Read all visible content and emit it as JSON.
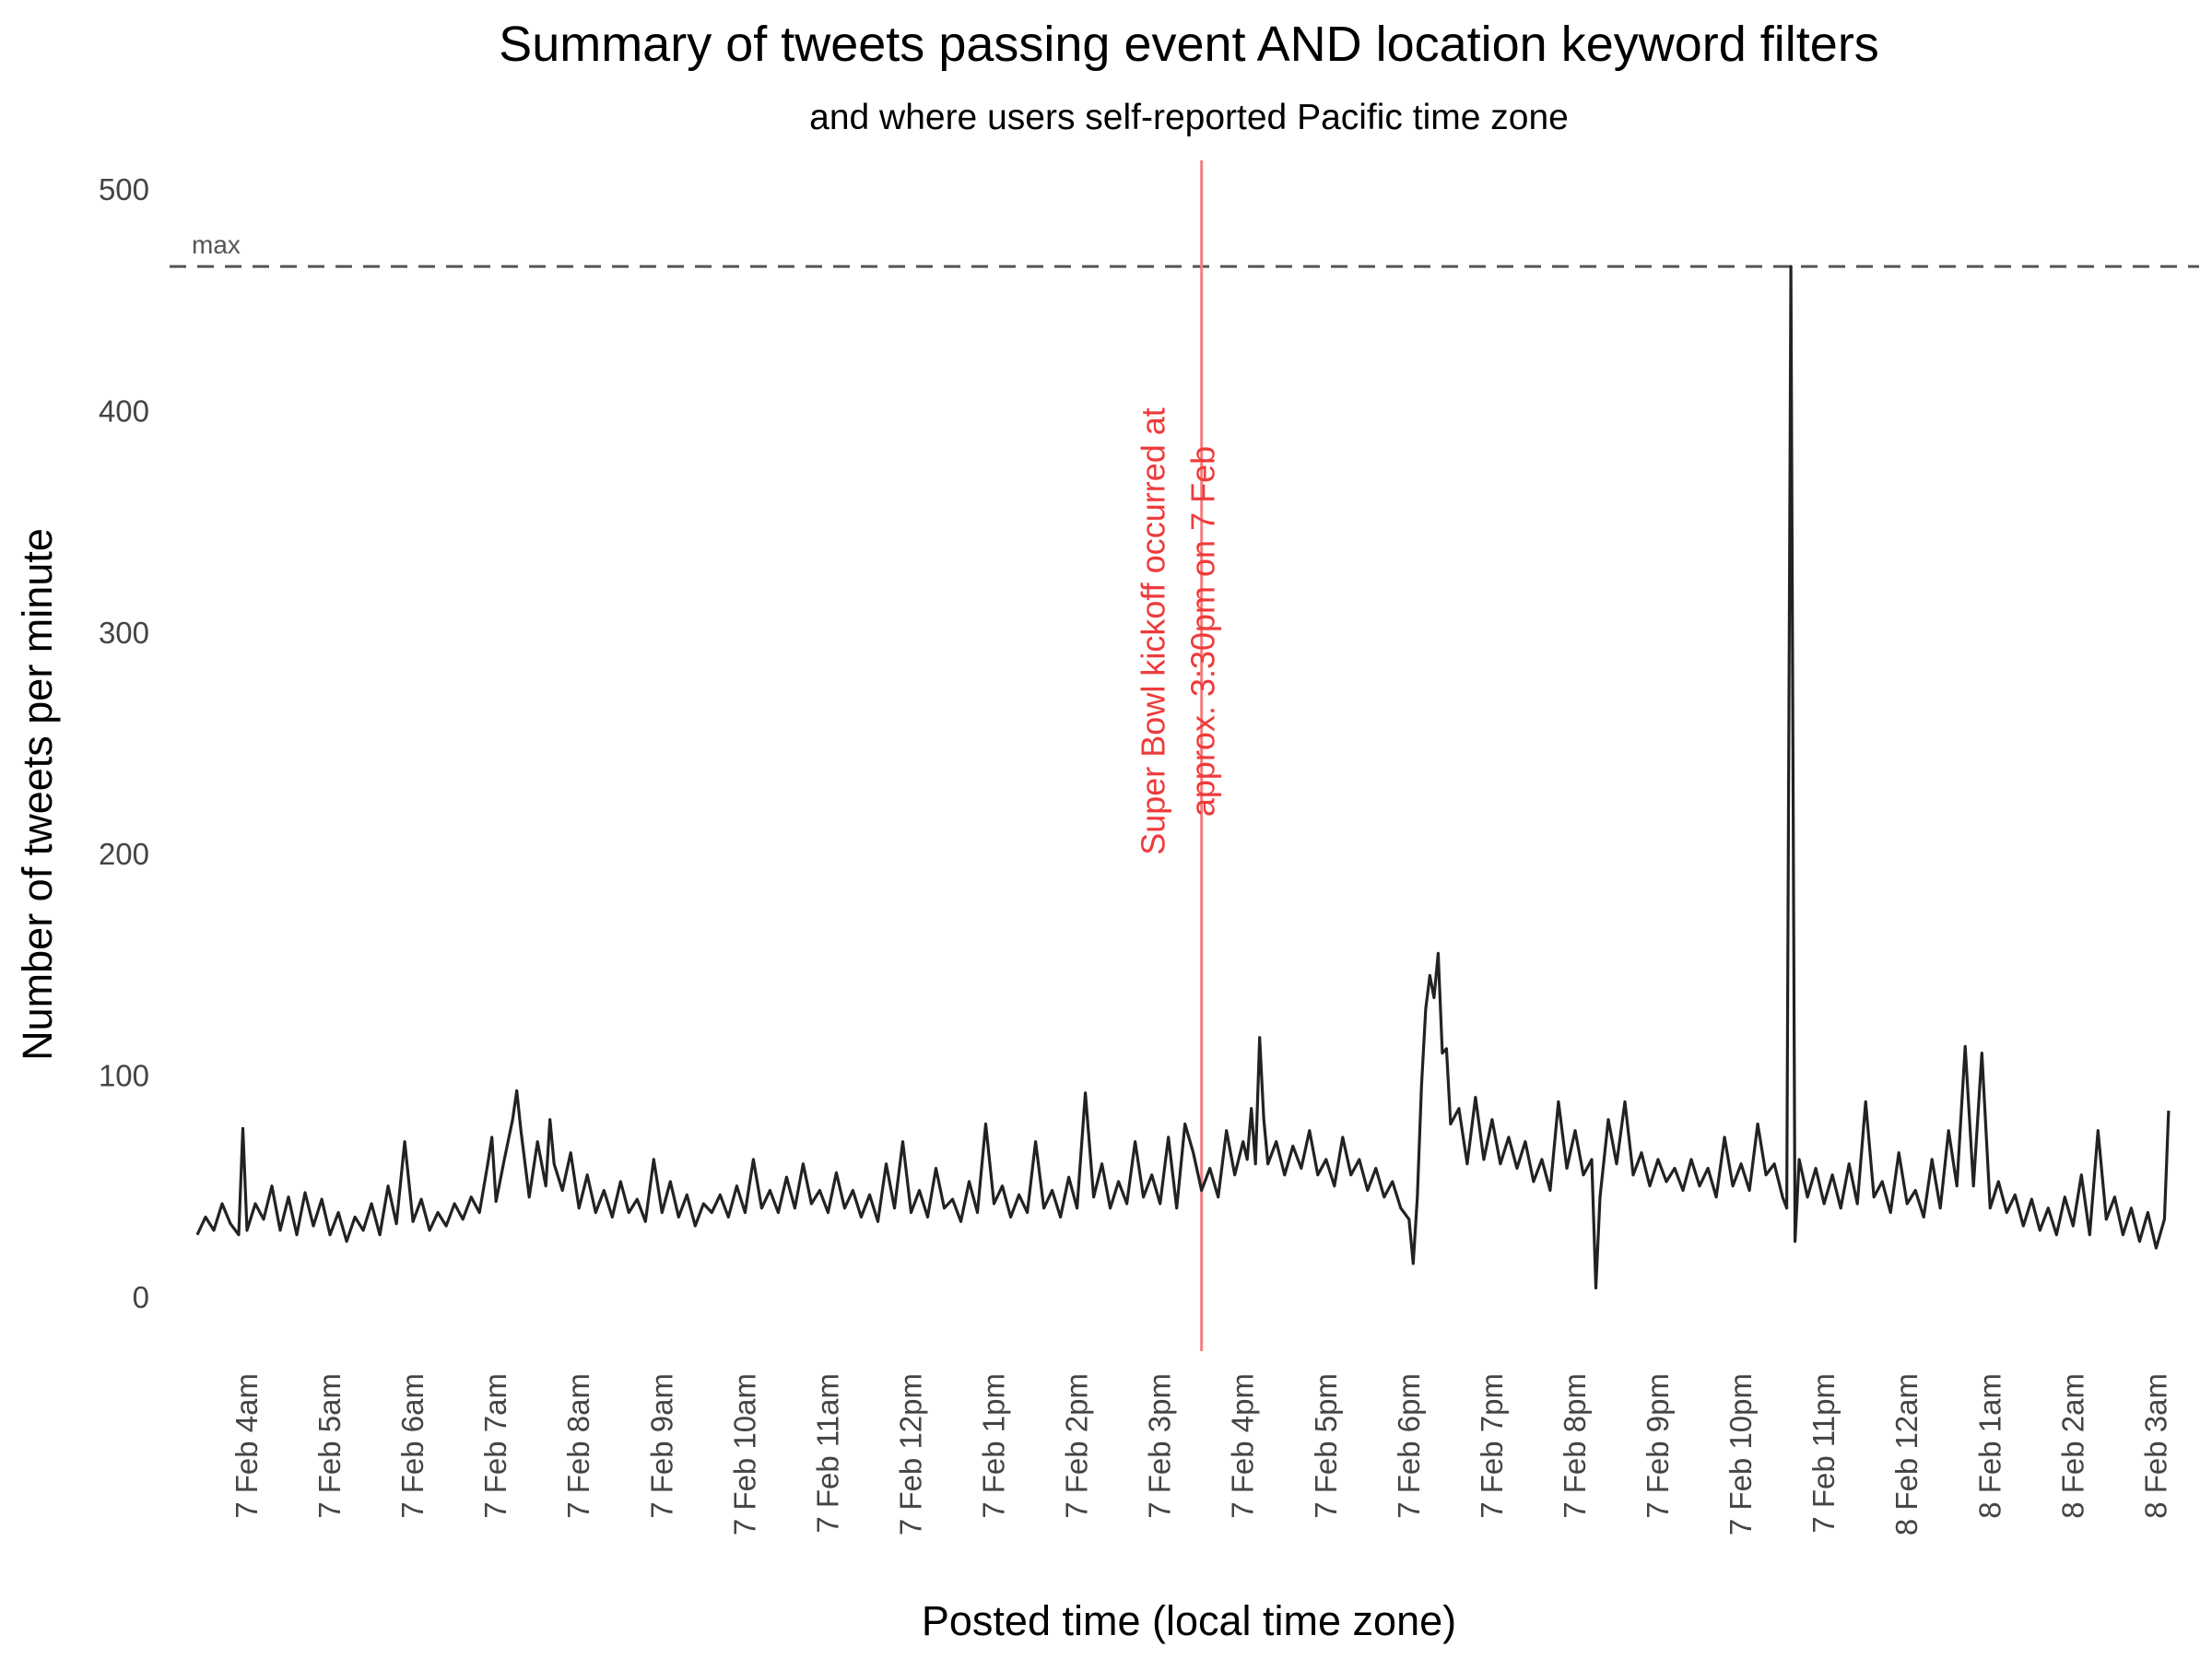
{
  "chart_data": {
    "type": "line",
    "title": "Summary of tweets passing event AND location keyword filters",
    "subtitle": "and where users self-reported Pacific time zone",
    "xlabel": "Posted time (local time zone)",
    "ylabel": "Number of tweets per minute",
    "ylim": [
      -25,
      512
    ],
    "yticks": [
      0,
      100,
      200,
      300,
      400,
      500
    ],
    "xticks": [
      "7 Feb  4am",
      "7 Feb  5am",
      "7 Feb  6am",
      "7 Feb  7am",
      "7 Feb  8am",
      "7 Feb  9am",
      "7 Feb 10am",
      "7 Feb 11am",
      "7 Feb 12pm",
      "7 Feb  1pm",
      "7 Feb  2pm",
      "7 Feb  3pm",
      "7 Feb  4pm",
      "7 Feb  5pm",
      "7 Feb  6pm",
      "7 Feb  7pm",
      "7 Feb  8pm",
      "7 Feb  9pm",
      "7 Feb 10pm",
      "7 Feb 11pm",
      "8 Feb 12am",
      "8 Feb  1am",
      "8 Feb  2am",
      "8 Feb  3am"
    ],
    "x_unit": "hours after 7 Feb 4am (local)",
    "x_range_hours": [
      -0.6,
      23.15
    ],
    "grid": false,
    "max_line": {
      "label": "max",
      "value": 465,
      "style": "dashed",
      "color": "#555555"
    },
    "event_line": {
      "x_hours": 11.5,
      "label_line1": "Super Bowl kickoff occurred at",
      "label_line2": "approx. 3:30pm on 7 Feb",
      "color": "#f08080",
      "text_color": "#ee3b3b"
    },
    "series": [
      {
        "color": "#222222",
        "points": [
          [
            -0.6,
            28
          ],
          [
            -0.5,
            36
          ],
          [
            -0.4,
            30
          ],
          [
            -0.3,
            42
          ],
          [
            -0.2,
            33
          ],
          [
            -0.1,
            28
          ],
          [
            -0.05,
            76
          ],
          [
            0.0,
            30
          ],
          [
            0.1,
            42
          ],
          [
            0.2,
            35
          ],
          [
            0.3,
            50
          ],
          [
            0.4,
            30
          ],
          [
            0.5,
            45
          ],
          [
            0.6,
            28
          ],
          [
            0.7,
            47
          ],
          [
            0.8,
            32
          ],
          [
            0.9,
            44
          ],
          [
            1.0,
            28
          ],
          [
            1.1,
            38
          ],
          [
            1.2,
            25
          ],
          [
            1.3,
            36
          ],
          [
            1.4,
            30
          ],
          [
            1.5,
            42
          ],
          [
            1.6,
            28
          ],
          [
            1.7,
            50
          ],
          [
            1.8,
            33
          ],
          [
            1.9,
            70
          ],
          [
            2.0,
            34
          ],
          [
            2.1,
            44
          ],
          [
            2.2,
            30
          ],
          [
            2.3,
            38
          ],
          [
            2.4,
            32
          ],
          [
            2.5,
            42
          ],
          [
            2.6,
            35
          ],
          [
            2.7,
            45
          ],
          [
            2.8,
            38
          ],
          [
            2.9,
            60
          ],
          [
            2.95,
            72
          ],
          [
            3.0,
            43
          ],
          [
            3.1,
            62
          ],
          [
            3.2,
            80
          ],
          [
            3.25,
            93
          ],
          [
            3.3,
            75
          ],
          [
            3.4,
            45
          ],
          [
            3.5,
            70
          ],
          [
            3.6,
            50
          ],
          [
            3.65,
            80
          ],
          [
            3.7,
            60
          ],
          [
            3.8,
            48
          ],
          [
            3.9,
            65
          ],
          [
            4.0,
            40
          ],
          [
            4.1,
            55
          ],
          [
            4.2,
            38
          ],
          [
            4.3,
            48
          ],
          [
            4.4,
            36
          ],
          [
            4.5,
            52
          ],
          [
            4.6,
            38
          ],
          [
            4.7,
            44
          ],
          [
            4.8,
            34
          ],
          [
            4.9,
            62
          ],
          [
            5.0,
            38
          ],
          [
            5.1,
            52
          ],
          [
            5.2,
            36
          ],
          [
            5.3,
            46
          ],
          [
            5.4,
            32
          ],
          [
            5.5,
            42
          ],
          [
            5.6,
            38
          ],
          [
            5.7,
            46
          ],
          [
            5.8,
            36
          ],
          [
            5.9,
            50
          ],
          [
            6.0,
            38
          ],
          [
            6.1,
            62
          ],
          [
            6.2,
            40
          ],
          [
            6.3,
            48
          ],
          [
            6.4,
            38
          ],
          [
            6.5,
            54
          ],
          [
            6.6,
            40
          ],
          [
            6.7,
            60
          ],
          [
            6.8,
            42
          ],
          [
            6.9,
            48
          ],
          [
            7.0,
            38
          ],
          [
            7.1,
            56
          ],
          [
            7.2,
            40
          ],
          [
            7.3,
            48
          ],
          [
            7.4,
            36
          ],
          [
            7.5,
            46
          ],
          [
            7.6,
            34
          ],
          [
            7.7,
            60
          ],
          [
            7.8,
            40
          ],
          [
            7.9,
            70
          ],
          [
            8.0,
            38
          ],
          [
            8.1,
            48
          ],
          [
            8.2,
            36
          ],
          [
            8.3,
            58
          ],
          [
            8.4,
            40
          ],
          [
            8.5,
            44
          ],
          [
            8.6,
            34
          ],
          [
            8.7,
            52
          ],
          [
            8.8,
            38
          ],
          [
            8.9,
            78
          ],
          [
            9.0,
            42
          ],
          [
            9.1,
            50
          ],
          [
            9.2,
            36
          ],
          [
            9.3,
            46
          ],
          [
            9.4,
            38
          ],
          [
            9.5,
            70
          ],
          [
            9.6,
            40
          ],
          [
            9.7,
            48
          ],
          [
            9.8,
            36
          ],
          [
            9.9,
            54
          ],
          [
            10.0,
            40
          ],
          [
            10.1,
            92
          ],
          [
            10.2,
            45
          ],
          [
            10.3,
            60
          ],
          [
            10.4,
            40
          ],
          [
            10.5,
            52
          ],
          [
            10.6,
            42
          ],
          [
            10.7,
            70
          ],
          [
            10.8,
            45
          ],
          [
            10.9,
            55
          ],
          [
            11.0,
            42
          ],
          [
            11.1,
            72
          ],
          [
            11.2,
            40
          ],
          [
            11.3,
            78
          ],
          [
            11.4,
            65
          ],
          [
            11.5,
            48
          ],
          [
            11.6,
            58
          ],
          [
            11.7,
            45
          ],
          [
            11.8,
            75
          ],
          [
            11.9,
            55
          ],
          [
            12.0,
            70
          ],
          [
            12.05,
            62
          ],
          [
            12.1,
            85
          ],
          [
            12.15,
            60
          ],
          [
            12.2,
            117
          ],
          [
            12.25,
            80
          ],
          [
            12.3,
            60
          ],
          [
            12.4,
            70
          ],
          [
            12.5,
            55
          ],
          [
            12.6,
            68
          ],
          [
            12.7,
            58
          ],
          [
            12.8,
            75
          ],
          [
            12.9,
            55
          ],
          [
            13.0,
            62
          ],
          [
            13.1,
            50
          ],
          [
            13.2,
            72
          ],
          [
            13.3,
            55
          ],
          [
            13.4,
            62
          ],
          [
            13.5,
            48
          ],
          [
            13.6,
            58
          ],
          [
            13.7,
            45
          ],
          [
            13.8,
            52
          ],
          [
            13.9,
            40
          ],
          [
            14.0,
            35
          ],
          [
            14.05,
            15
          ],
          [
            14.1,
            45
          ],
          [
            14.15,
            95
          ],
          [
            14.2,
            130
          ],
          [
            14.25,
            145
          ],
          [
            14.3,
            135
          ],
          [
            14.35,
            155
          ],
          [
            14.4,
            110
          ],
          [
            14.45,
            112
          ],
          [
            14.5,
            78
          ],
          [
            14.6,
            85
          ],
          [
            14.7,
            60
          ],
          [
            14.8,
            90
          ],
          [
            14.9,
            62
          ],
          [
            15.0,
            80
          ],
          [
            15.1,
            60
          ],
          [
            15.2,
            72
          ],
          [
            15.3,
            58
          ],
          [
            15.4,
            70
          ],
          [
            15.5,
            52
          ],
          [
            15.6,
            62
          ],
          [
            15.7,
            48
          ],
          [
            15.8,
            88
          ],
          [
            15.9,
            58
          ],
          [
            16.0,
            75
          ],
          [
            16.1,
            55
          ],
          [
            16.2,
            62
          ],
          [
            16.25,
            4
          ],
          [
            16.3,
            45
          ],
          [
            16.4,
            80
          ],
          [
            16.5,
            60
          ],
          [
            16.6,
            88
          ],
          [
            16.7,
            55
          ],
          [
            16.8,
            65
          ],
          [
            16.9,
            50
          ],
          [
            17.0,
            62
          ],
          [
            17.1,
            52
          ],
          [
            17.2,
            58
          ],
          [
            17.3,
            48
          ],
          [
            17.4,
            62
          ],
          [
            17.5,
            50
          ],
          [
            17.6,
            58
          ],
          [
            17.7,
            45
          ],
          [
            17.8,
            72
          ],
          [
            17.9,
            50
          ],
          [
            18.0,
            60
          ],
          [
            18.1,
            48
          ],
          [
            18.2,
            78
          ],
          [
            18.3,
            55
          ],
          [
            18.4,
            60
          ],
          [
            18.5,
            45
          ],
          [
            18.55,
            40
          ],
          [
            18.6,
            465
          ],
          [
            18.65,
            25
          ],
          [
            18.7,
            62
          ],
          [
            18.8,
            45
          ],
          [
            18.9,
            58
          ],
          [
            19.0,
            42
          ],
          [
            19.1,
            55
          ],
          [
            19.2,
            40
          ],
          [
            19.3,
            60
          ],
          [
            19.4,
            42
          ],
          [
            19.5,
            88
          ],
          [
            19.6,
            45
          ],
          [
            19.7,
            52
          ],
          [
            19.8,
            38
          ],
          [
            19.9,
            65
          ],
          [
            20.0,
            42
          ],
          [
            20.1,
            48
          ],
          [
            20.2,
            36
          ],
          [
            20.3,
            62
          ],
          [
            20.4,
            40
          ],
          [
            20.5,
            75
          ],
          [
            20.6,
            50
          ],
          [
            20.7,
            113
          ],
          [
            20.8,
            50
          ],
          [
            20.9,
            110
          ],
          [
            21.0,
            40
          ],
          [
            21.1,
            52
          ],
          [
            21.2,
            38
          ],
          [
            21.3,
            46
          ],
          [
            21.4,
            32
          ],
          [
            21.5,
            44
          ],
          [
            21.6,
            30
          ],
          [
            21.7,
            40
          ],
          [
            21.8,
            28
          ],
          [
            21.9,
            45
          ],
          [
            22.0,
            32
          ],
          [
            22.1,
            55
          ],
          [
            22.2,
            28
          ],
          [
            22.3,
            75
          ],
          [
            22.4,
            35
          ],
          [
            22.5,
            45
          ],
          [
            22.6,
            28
          ],
          [
            22.7,
            40
          ],
          [
            22.8,
            25
          ],
          [
            22.9,
            38
          ],
          [
            23.0,
            22
          ],
          [
            23.1,
            35
          ],
          [
            23.15,
            84
          ]
        ]
      }
    ]
  }
}
